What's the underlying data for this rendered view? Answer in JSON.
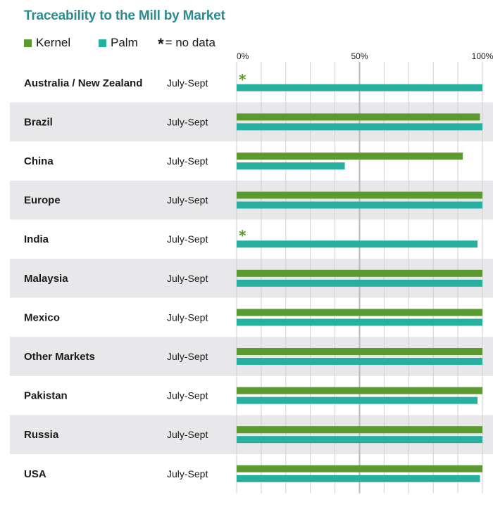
{
  "title": "Traceability to the Mill by Market",
  "legend": {
    "kernel_label": "Kernel",
    "palm_label": "Palm",
    "no_data_symbol": "*",
    "no_data_label": "= no data"
  },
  "colors": {
    "title": "#2d8a8e",
    "kernel": "#5a9a2e",
    "palm": "#27b0a0",
    "band": "#e8e8ea",
    "grid": "#cfcfd1",
    "midline": "#b8b8ba"
  },
  "chart_data": {
    "type": "bar",
    "orientation": "horizontal",
    "title": "Traceability to the Mill by Market",
    "xlim": [
      0,
      100
    ],
    "x_ticks": [
      {
        "value": 0,
        "label": "0%"
      },
      {
        "value": 50,
        "label": "50%"
      },
      {
        "value": 100,
        "label": "100%"
      }
    ],
    "grid": true,
    "legend_position": "top-left",
    "categories": [
      "Australia / New Zealand",
      "Brazil",
      "China",
      "Europe",
      "India",
      "Malaysia",
      "Mexico",
      "Other Markets",
      "Pakistan",
      "Russia",
      "USA"
    ],
    "periods": [
      "July-Sept",
      "July-Sept",
      "July-Sept",
      "July-Sept",
      "July-Sept",
      "July-Sept",
      "July-Sept",
      "July-Sept",
      "July-Sept",
      "July-Sept",
      "July-Sept"
    ],
    "series": [
      {
        "name": "Kernel",
        "values": [
          null,
          99,
          92,
          100,
          null,
          100,
          100,
          100,
          100,
          100,
          100
        ]
      },
      {
        "name": "Palm",
        "values": [
          100,
          100,
          44,
          100,
          98,
          100,
          100,
          100,
          98,
          100,
          99
        ]
      }
    ]
  }
}
